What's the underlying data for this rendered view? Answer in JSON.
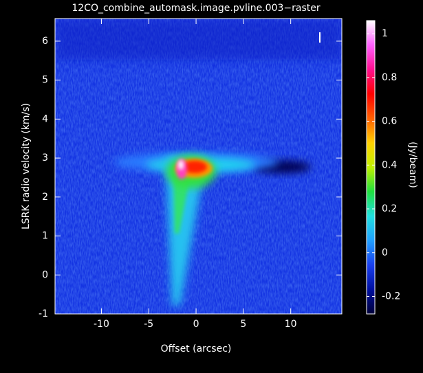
{
  "chart_data": {
    "type": "heatmap",
    "title": "12CO_combine_automask.image.pvline.003−raster",
    "x_label": "Offset (arcsec)",
    "y_label": "LSRK radio velocity  (km/s)",
    "xlim": [
      -14.9,
      15.4
    ],
    "xticks": [
      -10,
      -5,
      0,
      5,
      10
    ],
    "ylim": [
      -1,
      6.58
    ],
    "yticks": [
      -1,
      0,
      1,
      2,
      3,
      4,
      5,
      6
    ],
    "colorbar": {
      "label": "(Jy/beam)",
      "lim": [
        -0.28,
        1.06
      ],
      "ticks": [
        -0.2,
        0,
        0.2,
        0.4,
        0.6,
        0.8,
        1
      ],
      "colors": [
        "#00003a",
        "#0010a0",
        "#1a40f0",
        "#20a0ff",
        "#20e0e0",
        "#20e040",
        "#c0f000",
        "#ffd000",
        "#ff6000",
        "#ff0000",
        "#ff1090",
        "#ff60ff",
        "#ffffff"
      ]
    }
  }
}
